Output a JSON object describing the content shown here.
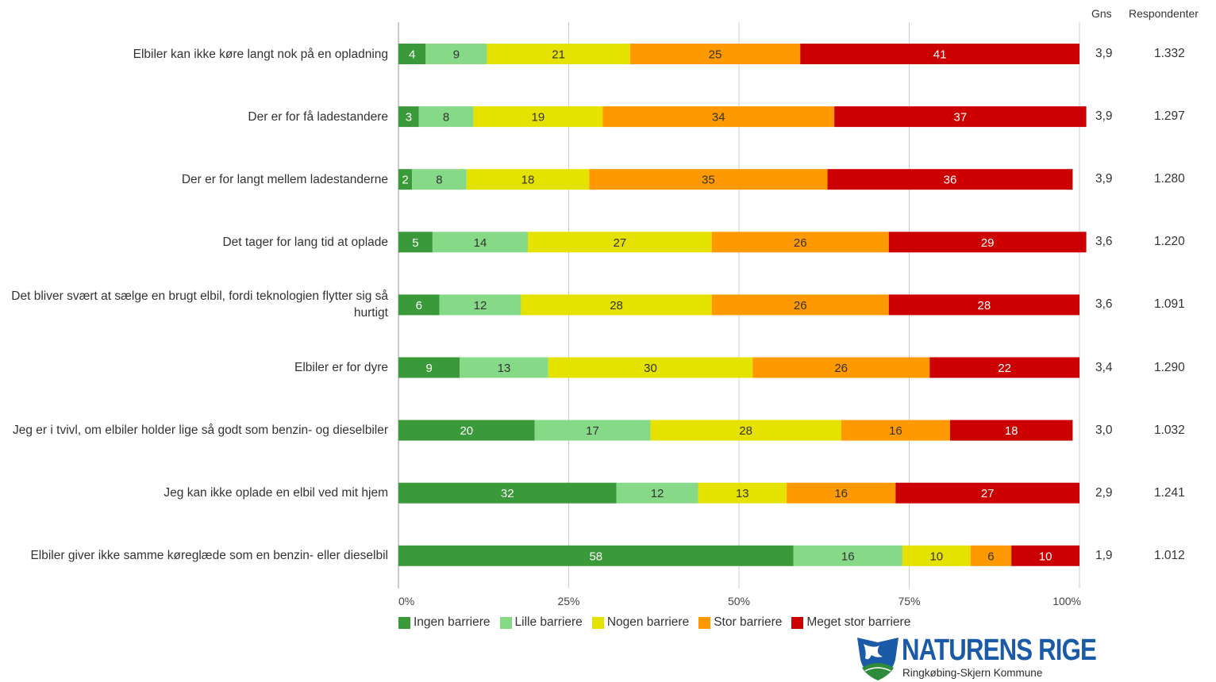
{
  "chart_data": {
    "type": "bar",
    "orientation": "horizontal",
    "stacked": true,
    "categories": [
      "Elbiler kan ikke køre langt nok på en opladning",
      "Der er for få ladestandere",
      "Der er for langt mellem ladestanderne",
      "Det tager for lang tid at oplade",
      "Det bliver svært at sælge en brugt elbil, fordi teknologien flytter sig så hurtigt",
      "Elbiler er for dyre",
      "Jeg er i tvivl, om elbiler holder lige så godt som benzin- og dieselbiler",
      "Jeg kan ikke oplade en elbil ved mit hjem",
      "Elbiler giver ikke samme køreglæde som en benzin- eller dieselbil"
    ],
    "series": [
      {
        "name": "Ingen barriere",
        "color": "#3a9a3a",
        "values": [
          4,
          3,
          2,
          5,
          6,
          9,
          20,
          32,
          58
        ]
      },
      {
        "name": "Lille barriere",
        "color": "#86d986",
        "values": [
          9,
          8,
          8,
          14,
          12,
          13,
          17,
          12,
          16
        ]
      },
      {
        "name": "Nogen barriere",
        "color": "#e6e200",
        "values": [
          21,
          19,
          18,
          27,
          28,
          30,
          28,
          13,
          10
        ]
      },
      {
        "name": "Stor barriere",
        "color": "#ff9900",
        "values": [
          25,
          34,
          35,
          26,
          26,
          26,
          16,
          16,
          6
        ]
      },
      {
        "name": "Meget stor barriere",
        "color": "#cc0000",
        "values": [
          41,
          37,
          36,
          29,
          28,
          22,
          18,
          27,
          10
        ]
      }
    ],
    "x_ticks": [
      "0%",
      "25%",
      "50%",
      "75%",
      "100%"
    ],
    "xlim": [
      0,
      100
    ],
    "grid": true,
    "legend_position": "bottom-left",
    "extra_columns": {
      "gns_header": "Gns",
      "respondenter_header": "Respondenter",
      "gns": [
        "3,9",
        "3,9",
        "3,9",
        "3,6",
        "3,6",
        "3,4",
        "3,0",
        "2,9",
        "1,9"
      ],
      "respondenter": [
        "1.332",
        "1.297",
        "1.280",
        "1.220",
        "1.091",
        "1.290",
        "1.032",
        "1.241",
        "1.012"
      ]
    }
  },
  "logo": {
    "title": "NATURENS RIGE",
    "subtitle": "Ringkøbing-Skjern Kommune",
    "colors": {
      "blue": "#1b5aa6",
      "green": "#2e8b3a"
    }
  }
}
